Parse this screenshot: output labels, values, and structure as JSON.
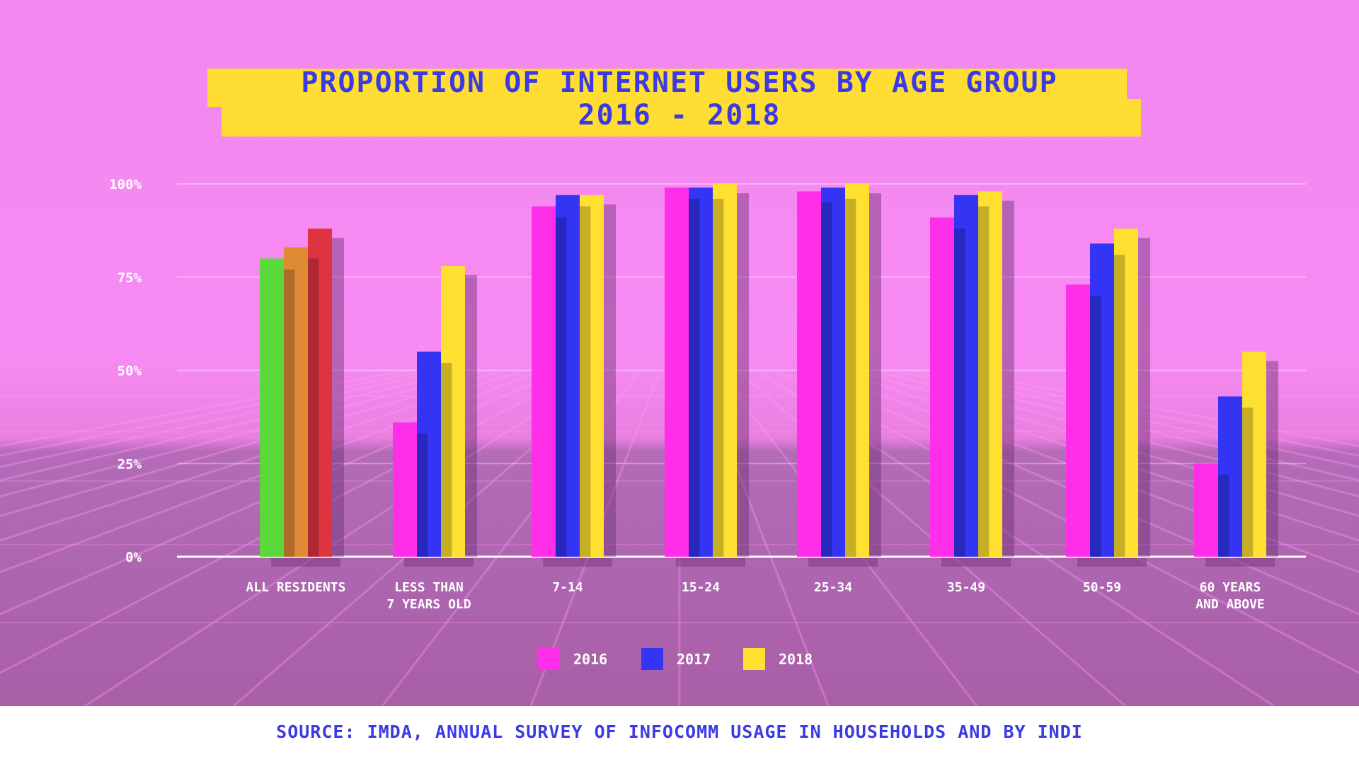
{
  "title_line1": "PROPORTION OF INTERNET USERS BY AGE GROUP",
  "title_line2": "2016 - 2018",
  "source": "SOURCE: IMDA, ANNUAL SURVEY OF INFOCOMM USAGE IN HOUSEHOLDS AND BY INDI",
  "colors": {
    "title_bg": "#ffdd33",
    "title_text": "#3a3ae6",
    "s2016": "#ff2ee8",
    "s2017": "#3434f4",
    "s2018": "#ffe030",
    "all_2016": "#5cd93a",
    "all_2017": "#df8a35",
    "all_2018": "#de3440",
    "axis": "#ffffff",
    "tick_text": "#ffffff"
  },
  "chart_data": {
    "type": "bar",
    "categories": [
      [
        "ALL RESIDENTS"
      ],
      [
        "LESS THAN",
        "7 YEARS OLD"
      ],
      [
        "7-14"
      ],
      [
        "15-24"
      ],
      [
        "25-34"
      ],
      [
        "35-49"
      ],
      [
        "50-59"
      ],
      [
        "60 YEARS",
        "AND ABOVE"
      ]
    ],
    "series": [
      {
        "name": "2016",
        "values": [
          80,
          36,
          94,
          99,
          98,
          91,
          73,
          25
        ]
      },
      {
        "name": "2017",
        "values": [
          83,
          55,
          97,
          99,
          99,
          97,
          84,
          43
        ]
      },
      {
        "name": "2018",
        "values": [
          88,
          78,
          97,
          100,
          100,
          98,
          88,
          55
        ]
      }
    ],
    "yticks": [
      "0%",
      "25%",
      "50%",
      "75%",
      "100%"
    ],
    "ylim": [
      0,
      100
    ],
    "grid": true,
    "legend_position": "bottom-center"
  }
}
